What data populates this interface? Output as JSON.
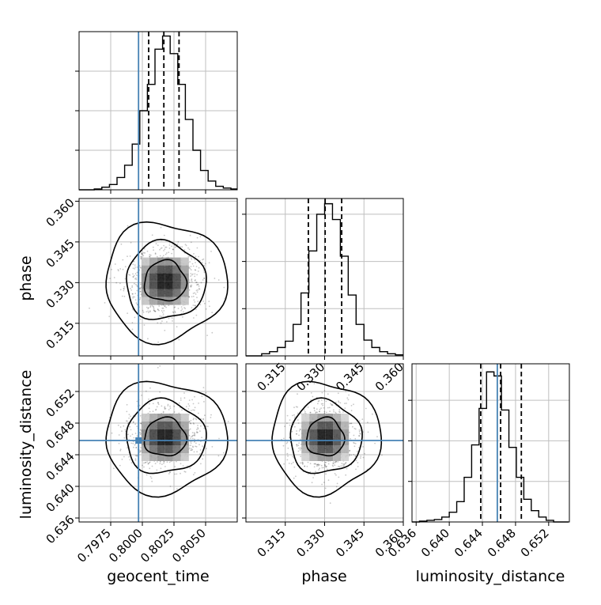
{
  "chart_data": [
    {
      "type": "histogram",
      "panel": "geocent_time",
      "x_range": [
        0.795,
        0.8075
      ],
      "bin_edges_start": 0.795,
      "bin_width": 0.0006,
      "counts": [
        0,
        0,
        1,
        3,
        6,
        14,
        28,
        52,
        90,
        120,
        160,
        175,
        155,
        120,
        80,
        45,
        22,
        10,
        4,
        2,
        1
      ],
      "y_range": [
        0,
        180
      ],
      "quantiles": [
        0.8005,
        0.8017,
        0.8029
      ],
      "truth": 0.7997,
      "xticks": [
        "0.7975",
        "0.8000",
        "0.8025",
        "0.8050"
      ],
      "xtick_values": [
        0.7975,
        0.8,
        0.8025,
        0.805
      ],
      "ytick_values": [
        45,
        90,
        135
      ]
    },
    {
      "type": "histogram",
      "panel": "phase",
      "x_range": [
        0.3,
        0.36
      ],
      "bin_edges_start": 0.3,
      "bin_width": 0.003,
      "counts": [
        0,
        0,
        2,
        4,
        8,
        14,
        30,
        60,
        100,
        135,
        145,
        130,
        95,
        58,
        30,
        15,
        8,
        4,
        2,
        1
      ],
      "y_range": [
        0,
        150
      ],
      "quantiles": [
        0.3238,
        0.3302,
        0.3365
      ],
      "xticks": [
        "0.315",
        "0.330",
        "0.345",
        "0.360"
      ],
      "xtick_values": [
        0.315,
        0.33,
        0.345,
        0.36
      ],
      "ytick_values": [
        45,
        90,
        135
      ]
    },
    {
      "type": "histogram",
      "panel": "luminosity_distance",
      "x_range": [
        0.6355,
        0.6545
      ],
      "bin_edges_start": 0.6355,
      "bin_width": 0.0009,
      "counts": [
        0,
        1,
        2,
        3,
        6,
        12,
        25,
        55,
        95,
        140,
        185,
        180,
        138,
        92,
        55,
        28,
        14,
        6,
        2,
        0,
        0
      ],
      "y_range": [
        0,
        195
      ],
      "quantiles": [
        0.6438,
        0.6462,
        0.6487
      ],
      "truth": 0.6458,
      "xticks": [
        "0.636",
        "0.640",
        "0.644",
        "0.648",
        "0.652"
      ],
      "xtick_values": [
        0.636,
        0.64,
        0.644,
        0.648,
        0.652
      ],
      "ytick_values": [
        50,
        100,
        150
      ]
    },
    {
      "type": "scatter-density",
      "panel": "phase vs geocent_time",
      "x_range": [
        0.795,
        0.8075
      ],
      "y_range": [
        0.303,
        0.361
      ],
      "center": [
        0.8018,
        0.3305
      ],
      "spread": [
        0.0015,
        0.0068
      ],
      "contour_levels": [
        0.39,
        0.86,
        0.99
      ],
      "truth": [
        0.7997,
        null
      ],
      "yticks": [
        "0.315",
        "0.330",
        "0.345",
        "0.360"
      ],
      "ytick_values": [
        0.315,
        0.33,
        0.345,
        0.36
      ]
    },
    {
      "type": "scatter-density",
      "panel": "luminosity_distance vs geocent_time",
      "x_range": [
        0.795,
        0.8075
      ],
      "y_range": [
        0.6355,
        0.6555
      ],
      "center": [
        0.8018,
        0.6462
      ],
      "spread": [
        0.0015,
        0.0022
      ],
      "contour_levels": [
        0.39,
        0.86,
        0.99
      ],
      "truth": [
        0.7997,
        0.6458
      ],
      "yticks": [
        "0.636",
        "0.640",
        "0.644",
        "0.648",
        "0.652"
      ],
      "ytick_values": [
        0.636,
        0.64,
        0.644,
        0.648,
        0.652
      ]
    },
    {
      "type": "scatter-density",
      "panel": "luminosity_distance vs phase",
      "x_range": [
        0.3,
        0.36
      ],
      "y_range": [
        0.6355,
        0.6555
      ],
      "center": [
        0.3302,
        0.6462
      ],
      "spread": [
        0.0065,
        0.0022
      ],
      "contour_levels": [
        0.39,
        0.86,
        0.99
      ],
      "truth": [
        null,
        0.6458
      ]
    }
  ],
  "labels": {
    "x_geocent_time": "geocent_time",
    "x_phase": "phase",
    "x_luminosity_distance": "luminosity_distance",
    "y_phase": "phase",
    "y_luminosity_distance": "luminosity_distance"
  },
  "colors": {
    "truth": "#4682b4",
    "grid": "#bfbfbf",
    "hist": "#000000"
  }
}
